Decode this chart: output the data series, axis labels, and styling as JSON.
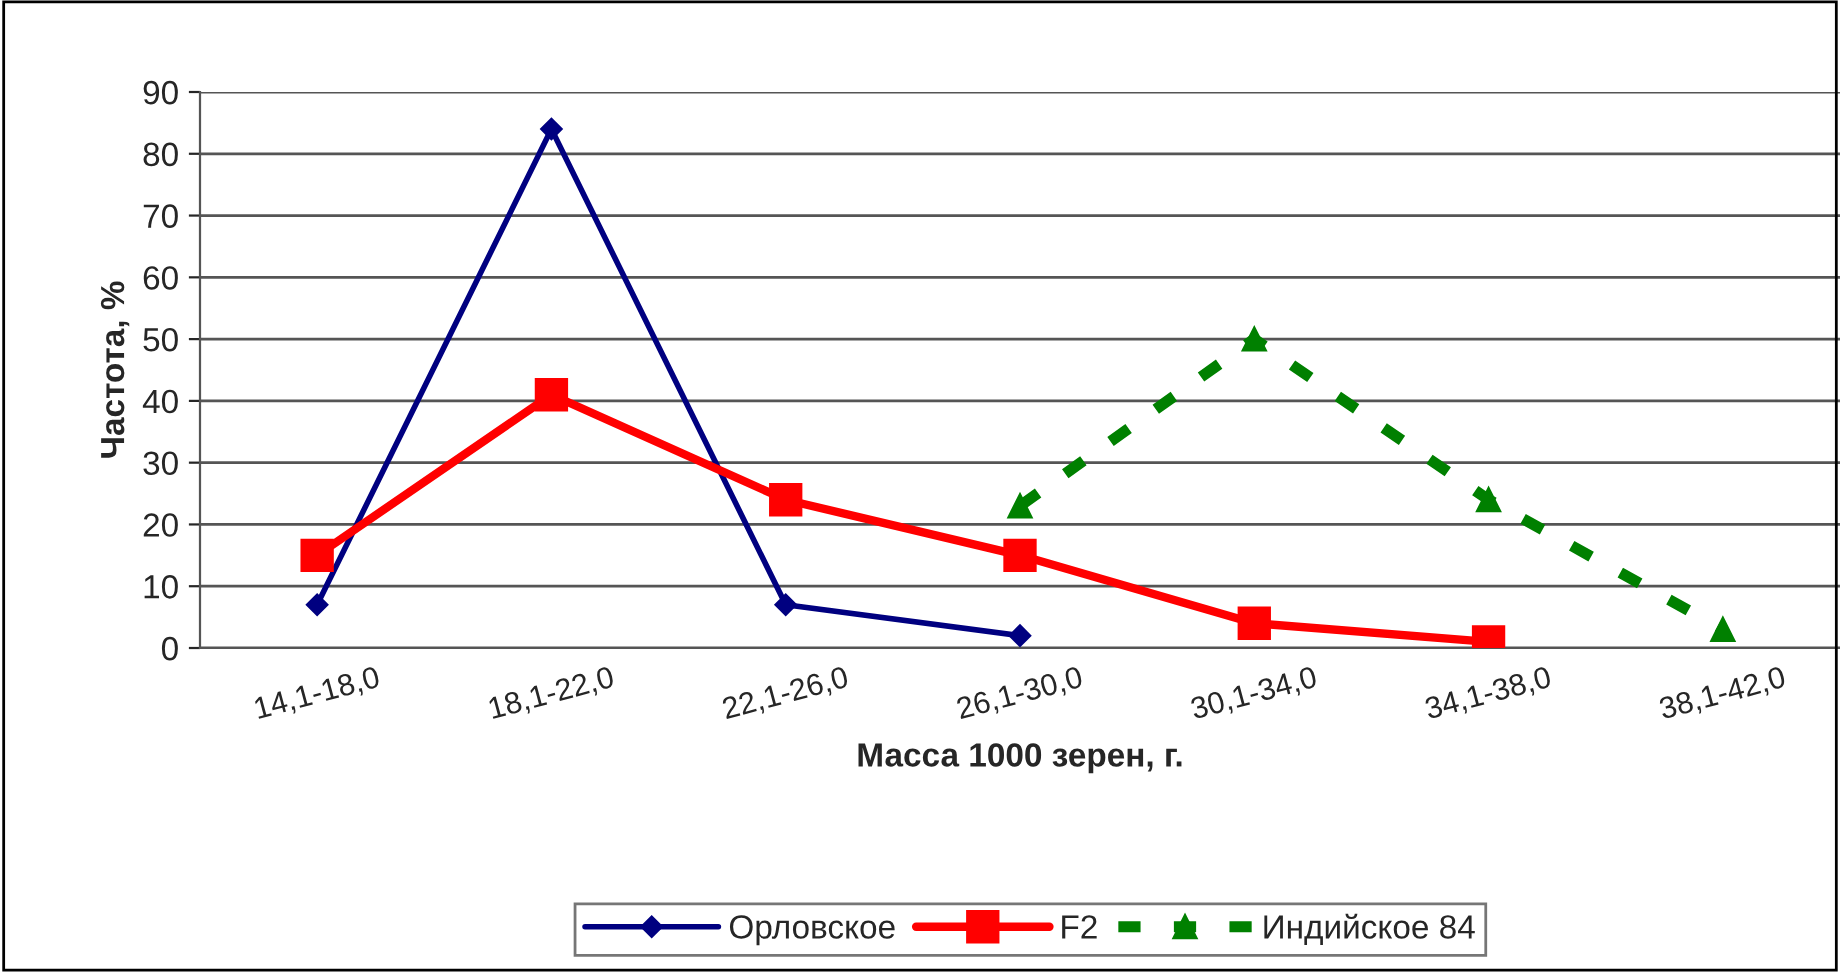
{
  "chart_data": {
    "type": "line",
    "xlabel": "Масса 1000 зерен, г.",
    "ylabel": "Частота, %",
    "categories": [
      "14,1-18,0",
      "18,1-22,0",
      "22,1-26,0",
      "26,1-30,0",
      "30,1-34,0",
      "34,1-38,0",
      "38,1-42,0"
    ],
    "series": [
      {
        "name": "Орловское",
        "color": "#000080",
        "marker": "diamond",
        "line_style": "solid",
        "values": [
          7,
          84,
          7,
          2,
          null,
          null,
          null
        ]
      },
      {
        "name": "F2",
        "color": "#ff0000",
        "marker": "square",
        "line_style": "solid",
        "values": [
          15,
          41,
          24,
          15,
          4,
          1,
          null
        ]
      },
      {
        "name": "Индийское 84",
        "color": "#008000",
        "marker": "triangle",
        "line_style": "dashed",
        "values": [
          null,
          null,
          null,
          23,
          50,
          24,
          3
        ]
      }
    ],
    "ylim": [
      0,
      90
    ],
    "yticks": [
      0,
      10,
      20,
      30,
      40,
      50,
      60,
      70,
      80,
      90
    ],
    "grid": "y",
    "legend": "bottom"
  }
}
